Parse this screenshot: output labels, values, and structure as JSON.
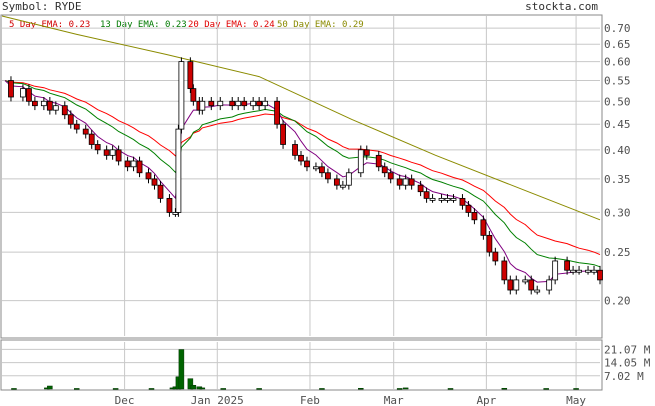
{
  "header": {
    "symbol_label": "Symbol: RYDE",
    "brand": "stockta.com"
  },
  "legend": [
    {
      "label": "5 Day EMA: 0.23",
      "color": "#d10000"
    },
    {
      "label": "13 Day EMA: 0.23",
      "color": "#007a00"
    },
    {
      "label": "20 Day EMA: 0.24",
      "color": "#e00000"
    },
    {
      "label": "50 Day EMA: 0.29",
      "color": "#8a8a00"
    }
  ],
  "colors": {
    "up_candle": "#ffffff",
    "down_candle": "#cc0000",
    "candle_outline": "#000000",
    "ema5": "#800080",
    "ema13": "#008000",
    "ema20": "#ff0000",
    "ema50": "#8b8b00",
    "volume": "#006400",
    "grid": "#c8c8c8",
    "axis_text": "#505050"
  },
  "chart_data": {
    "type": "candlestick",
    "price_axis": {
      "scale": "log",
      "range": [
        0.17,
        0.74
      ],
      "ticks": [
        0.2,
        0.25,
        0.3,
        0.35,
        0.4,
        0.45,
        0.5,
        0.55,
        0.6,
        0.65,
        0.7
      ],
      "tick_labels": [
        "0.20",
        "0.25",
        "0.30",
        "0.35",
        "0.40",
        "0.45",
        "0.50",
        "0.55",
        "0.60",
        "0.65",
        "0.70"
      ]
    },
    "volume_axis": {
      "range": [
        0,
        25000000
      ],
      "ticks": [
        7020000,
        14050000,
        21070000
      ],
      "tick_labels": [
        "7.02 M",
        "14.05 M",
        "21.07 M"
      ]
    },
    "x_axis": {
      "range": [
        "2024-10-21",
        "2025-05-09"
      ],
      "labels": [
        {
          "date": "2024-12-01",
          "text": "Dec"
        },
        {
          "date": "2025-01-01",
          "text": "Jan 2025"
        },
        {
          "date": "2025-02-01",
          "text": "Feb"
        },
        {
          "date": "2025-03-01",
          "text": "Mar"
        },
        {
          "date": "2025-04-01",
          "text": "Apr"
        },
        {
          "date": "2025-05-01",
          "text": "May"
        }
      ]
    },
    "grid": true,
    "series_close": [
      [
        "2024-10-22",
        0.55
      ],
      [
        "2024-10-24",
        0.51
      ],
      [
        "2024-10-28",
        0.53
      ],
      [
        "2024-10-30",
        0.5
      ],
      [
        "2024-11-01",
        0.49
      ],
      [
        "2024-11-04",
        0.5
      ],
      [
        "2024-11-06",
        0.48
      ],
      [
        "2024-11-08",
        0.49
      ],
      [
        "2024-11-11",
        0.47
      ],
      [
        "2024-11-13",
        0.45
      ],
      [
        "2024-11-15",
        0.44
      ],
      [
        "2024-11-18",
        0.43
      ],
      [
        "2024-11-20",
        0.41
      ],
      [
        "2024-11-22",
        0.4
      ],
      [
        "2024-11-25",
        0.39
      ],
      [
        "2024-11-27",
        0.4
      ],
      [
        "2024-11-29",
        0.38
      ],
      [
        "2024-12-02",
        0.37
      ],
      [
        "2024-12-04",
        0.38
      ],
      [
        "2024-12-06",
        0.36
      ],
      [
        "2024-12-09",
        0.35
      ],
      [
        "2024-12-11",
        0.34
      ],
      [
        "2024-12-13",
        0.32
      ],
      [
        "2024-12-16",
        0.3
      ],
      [
        "2024-12-18",
        0.3
      ],
      [
        "2024-12-19",
        0.44
      ],
      [
        "2024-12-20",
        0.6
      ],
      [
        "2024-12-23",
        0.53
      ],
      [
        "2024-12-24",
        0.5
      ],
      [
        "2024-12-26",
        0.48
      ],
      [
        "2024-12-27",
        0.5
      ],
      [
        "2024-12-30",
        0.49
      ],
      [
        "2025-01-02",
        0.5
      ],
      [
        "2025-01-06",
        0.49
      ],
      [
        "2025-01-08",
        0.5
      ],
      [
        "2025-01-10",
        0.49
      ],
      [
        "2025-01-13",
        0.5
      ],
      [
        "2025-01-15",
        0.49
      ],
      [
        "2025-01-17",
        0.5
      ],
      [
        "2025-01-21",
        0.45
      ],
      [
        "2025-01-23",
        0.41
      ],
      [
        "2025-01-27",
        0.39
      ],
      [
        "2025-01-29",
        0.38
      ],
      [
        "2025-01-31",
        0.37
      ],
      [
        "2025-02-03",
        0.37
      ],
      [
        "2025-02-05",
        0.36
      ],
      [
        "2025-02-07",
        0.35
      ],
      [
        "2025-02-10",
        0.34
      ],
      [
        "2025-02-12",
        0.34
      ],
      [
        "2025-02-14",
        0.36
      ],
      [
        "2025-02-18",
        0.4
      ],
      [
        "2025-02-20",
        0.39
      ],
      [
        "2025-02-24",
        0.37
      ],
      [
        "2025-02-26",
        0.36
      ],
      [
        "2025-02-28",
        0.35
      ],
      [
        "2025-03-03",
        0.34
      ],
      [
        "2025-03-05",
        0.35
      ],
      [
        "2025-03-07",
        0.34
      ],
      [
        "2025-03-10",
        0.33
      ],
      [
        "2025-03-12",
        0.32
      ],
      [
        "2025-03-14",
        0.32
      ],
      [
        "2025-03-17",
        0.32
      ],
      [
        "2025-03-19",
        0.32
      ],
      [
        "2025-03-21",
        0.32
      ],
      [
        "2025-03-24",
        0.31
      ],
      [
        "2025-03-26",
        0.3
      ],
      [
        "2025-03-28",
        0.29
      ],
      [
        "2025-03-31",
        0.27
      ],
      [
        "2025-04-02",
        0.25
      ],
      [
        "2025-04-04",
        0.24
      ],
      [
        "2025-04-07",
        0.22
      ],
      [
        "2025-04-09",
        0.21
      ],
      [
        "2025-04-11",
        0.22
      ],
      [
        "2025-04-14",
        0.22
      ],
      [
        "2025-04-16",
        0.21
      ],
      [
        "2025-04-18",
        0.21
      ],
      [
        "2025-04-22",
        0.22
      ],
      [
        "2025-04-24",
        0.24
      ],
      [
        "2025-04-28",
        0.23
      ],
      [
        "2025-04-30",
        0.23
      ],
      [
        "2025-05-02",
        0.23
      ],
      [
        "2025-05-05",
        0.23
      ],
      [
        "2025-05-07",
        0.23
      ],
      [
        "2025-05-09",
        0.22
      ]
    ],
    "series_ema50": [
      [
        "2024-10-21",
        0.74
      ],
      [
        "2024-11-15",
        0.68
      ],
      [
        "2024-12-15",
        0.62
      ],
      [
        "2025-01-15",
        0.56
      ],
      [
        "2025-02-15",
        0.46
      ],
      [
        "2025-03-15",
        0.39
      ],
      [
        "2025-04-15",
        0.33
      ],
      [
        "2025-05-09",
        0.29
      ]
    ],
    "volume": [
      [
        "2024-10-25",
        300000
      ],
      [
        "2024-11-05",
        600000
      ],
      [
        "2024-11-06",
        1600000
      ],
      [
        "2024-11-15",
        300000
      ],
      [
        "2024-11-28",
        300000
      ],
      [
        "2024-12-10",
        300000
      ],
      [
        "2024-12-17",
        600000
      ],
      [
        "2024-12-18",
        1200000
      ],
      [
        "2024-12-19",
        6500000
      ],
      [
        "2024-12-20",
        21000000
      ],
      [
        "2024-12-23",
        5500000
      ],
      [
        "2024-12-24",
        2000000
      ],
      [
        "2024-12-26",
        1200000
      ],
      [
        "2024-12-27",
        600000
      ],
      [
        "2025-01-03",
        300000
      ],
      [
        "2025-01-15",
        300000
      ],
      [
        "2025-02-05",
        300000
      ],
      [
        "2025-02-18",
        400000
      ],
      [
        "2025-03-03",
        300000
      ],
      [
        "2025-03-05",
        600000
      ],
      [
        "2025-03-20",
        300000
      ],
      [
        "2025-04-07",
        400000
      ],
      [
        "2025-04-21",
        300000
      ],
      [
        "2025-05-01",
        300000
      ]
    ]
  }
}
